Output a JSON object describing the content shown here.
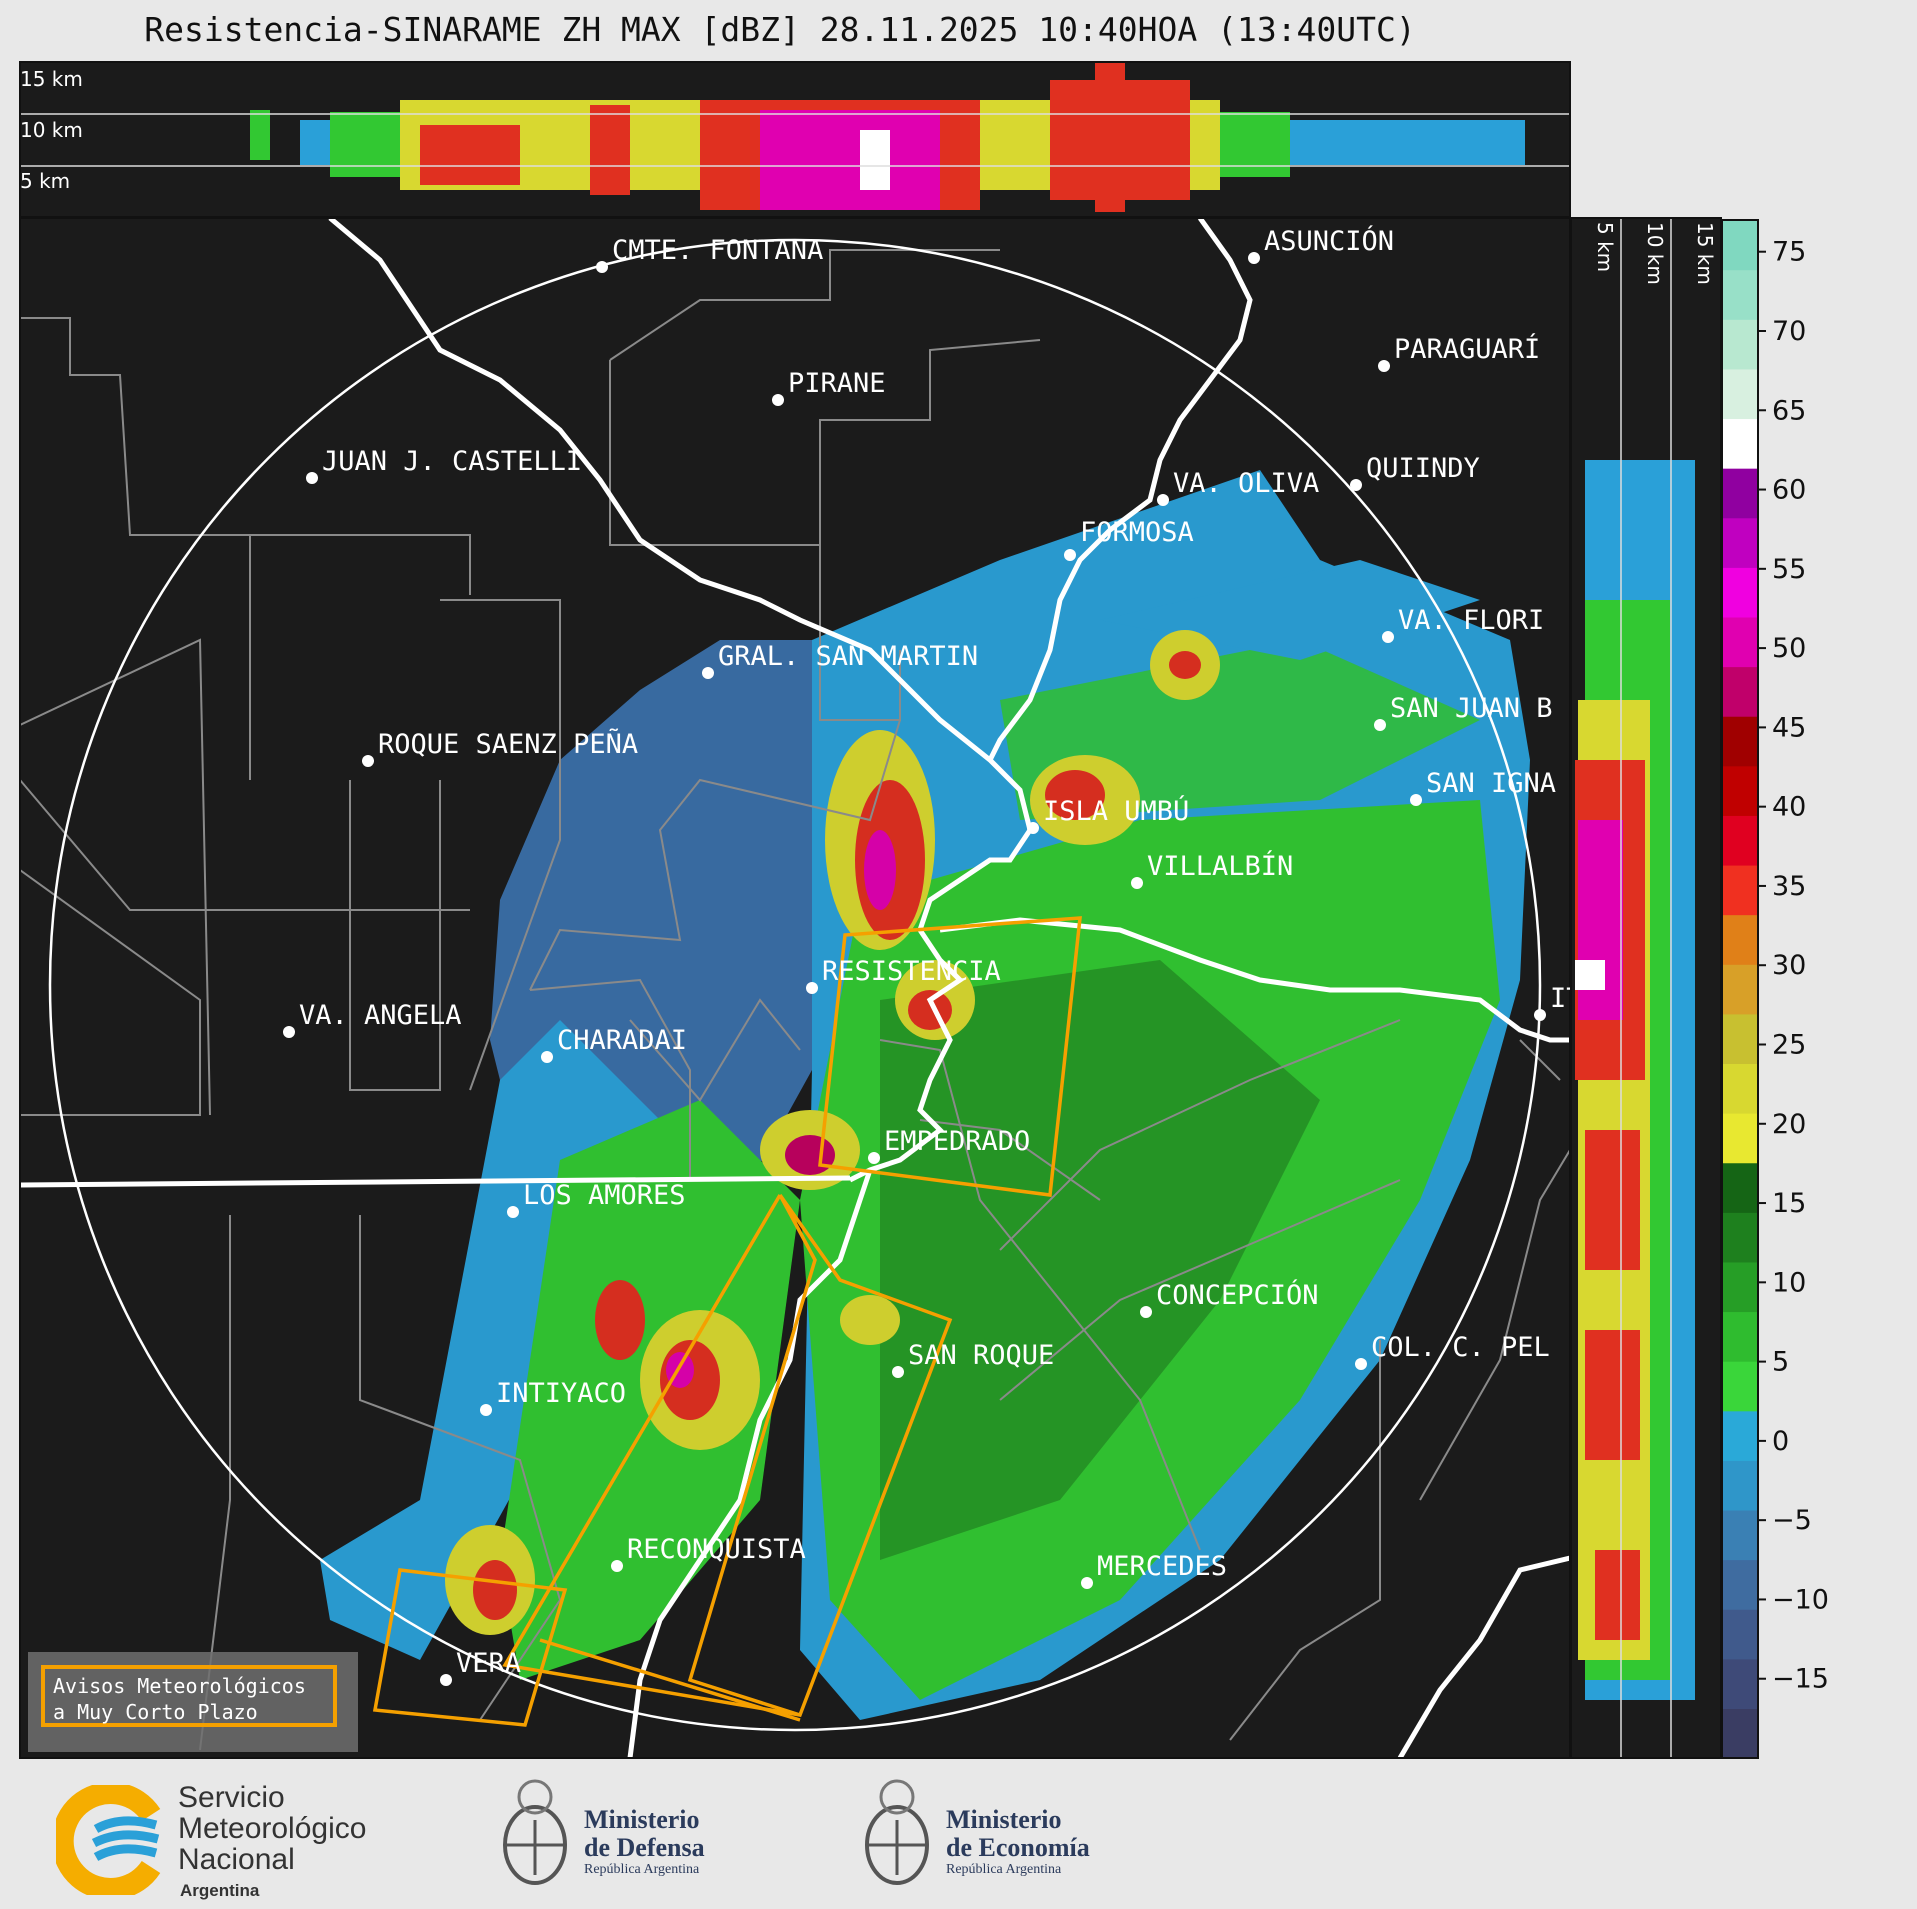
{
  "title": "Resistencia-SINARAME ZH MAX [dBZ] 28.11.2025 10:40HOA (13:40UTC)",
  "top_profile": {
    "height_labels": [
      "15 km",
      "10 km",
      "5 km"
    ]
  },
  "side_profile": {
    "height_labels": [
      "5 km",
      "10 km",
      "15 km"
    ]
  },
  "colorbar": {
    "unit": "dBZ",
    "ticks": [
      "75",
      "70",
      "65",
      "60",
      "55",
      "50",
      "45",
      "40",
      "35",
      "30",
      "25",
      "20",
      "15",
      "10",
      "5",
      "0",
      "−5",
      "−10",
      "−15"
    ],
    "colors": [
      "#3a3d63",
      "#3e4a78",
      "#405a8c",
      "#3f6ca0",
      "#3a80b4",
      "#2f96c9",
      "#2aa9d8",
      "#3ad63a",
      "#2fbc2f",
      "#269e26",
      "#1e801e",
      "#156515",
      "#e8e830",
      "#d8d830",
      "#c8c030",
      "#d8a028",
      "#e08018",
      "#f03020",
      "#e00020",
      "#c00000",
      "#a00000",
      "#c0006a",
      "#e000b0",
      "#f000e0",
      "#c000c0",
      "#9000a0",
      "#ffffff",
      "#d8f0e0",
      "#b8e8d0",
      "#98e0c8",
      "#80d8c0"
    ],
    "colors_meaning": "bottom-to-top palette from -20 to 77 dBZ"
  },
  "map": {
    "radar_range_circle": true,
    "cities": [
      {
        "name": "CMTE. FONTANA"
      },
      {
        "name": "ASUNCIÓN"
      },
      {
        "name": "PARAGUARÍ"
      },
      {
        "name": "PIRANE"
      },
      {
        "name": "JUAN J. CASTELLI"
      },
      {
        "name": "VA. OLIVA"
      },
      {
        "name": "QUIINDY"
      },
      {
        "name": "FORMOSA"
      },
      {
        "name": "VA. FLORI"
      },
      {
        "name": "GRAL. SAN MARTIN"
      },
      {
        "name": "SAN JUAN B"
      },
      {
        "name": "ROQUE SAENZ PEÑA"
      },
      {
        "name": "SAN IGNA"
      },
      {
        "name": "ISLA UMBÚ"
      },
      {
        "name": "VILLALBÍN"
      },
      {
        "name": "RESISTENCIA"
      },
      {
        "name": "IT"
      },
      {
        "name": "VA. ANGELA"
      },
      {
        "name": "CHARADAI"
      },
      {
        "name": "EMPEDRADO"
      },
      {
        "name": "LOS AMORES"
      },
      {
        "name": "CONCEPCIÓN"
      },
      {
        "name": "SAN ROQUE"
      },
      {
        "name": "COL. C. PEL"
      },
      {
        "name": "INTIYACO"
      },
      {
        "name": "RECONQUISTA"
      },
      {
        "name": "MERCEDES"
      },
      {
        "name": "VERA"
      }
    ],
    "warning_polygon_color": "#f5a000"
  },
  "legend": {
    "line1": "Avisos Meteorológicos",
    "line2": "a Muy Corto Plazo"
  },
  "logos": {
    "smn": {
      "line1": "Servicio",
      "line2": "Meteorológico",
      "line3": "Nacional",
      "line4": "Argentina"
    },
    "defensa": {
      "line1": "Ministerio",
      "line2": "de Defensa",
      "line3": "República Argentina"
    },
    "economia": {
      "line1": "Ministerio",
      "line2": "de Economía",
      "line3": "República Argentina"
    }
  }
}
